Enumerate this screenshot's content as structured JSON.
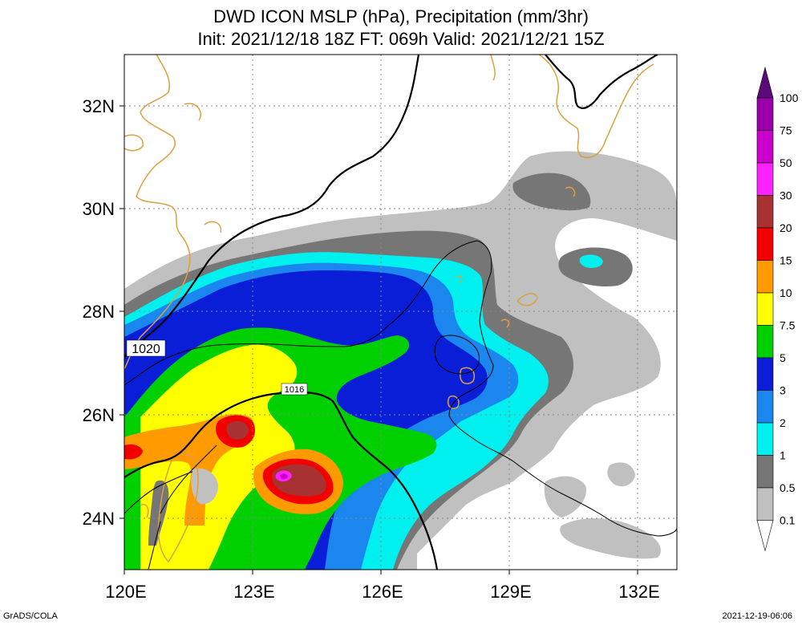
{
  "title": {
    "line1": "DWD ICON MSLP (hPa), Precipitation (mm/3hr)",
    "line2": "Init: 2021/12/18 18Z  FT: 069h  Valid: 2021/12/21 15Z"
  },
  "axes": {
    "x_ticks": [
      "120E",
      "123E",
      "126E",
      "129E",
      "132E"
    ],
    "y_ticks": [
      "32N",
      "30N",
      "28N",
      "26N",
      "24N"
    ]
  },
  "isobar_labels": {
    "outer": "1020",
    "inner": "1016"
  },
  "legend": {
    "levels": [
      "100",
      "75",
      "50",
      "30",
      "20",
      "15",
      "10",
      "7.5",
      "5",
      "3",
      "2",
      "1",
      "0.5",
      "0.1"
    ],
    "colors": [
      "#5a0a7a",
      "#9a00a8",
      "#cc00cc",
      "#ff22ff",
      "#a83232",
      "#f20000",
      "#ff9a00",
      "#ffff00",
      "#00d000",
      "#0a1ed8",
      "#1a86ee",
      "#00f0f0",
      "#767676",
      "#c0c0c0",
      "#ffffff"
    ]
  },
  "colors": {
    "coastline": "#dba040",
    "isobar": "#000000",
    "grid": "#888888"
  },
  "footer": {
    "left": "GrADS/COLA",
    "right": "2021-12-19-06:06"
  }
}
